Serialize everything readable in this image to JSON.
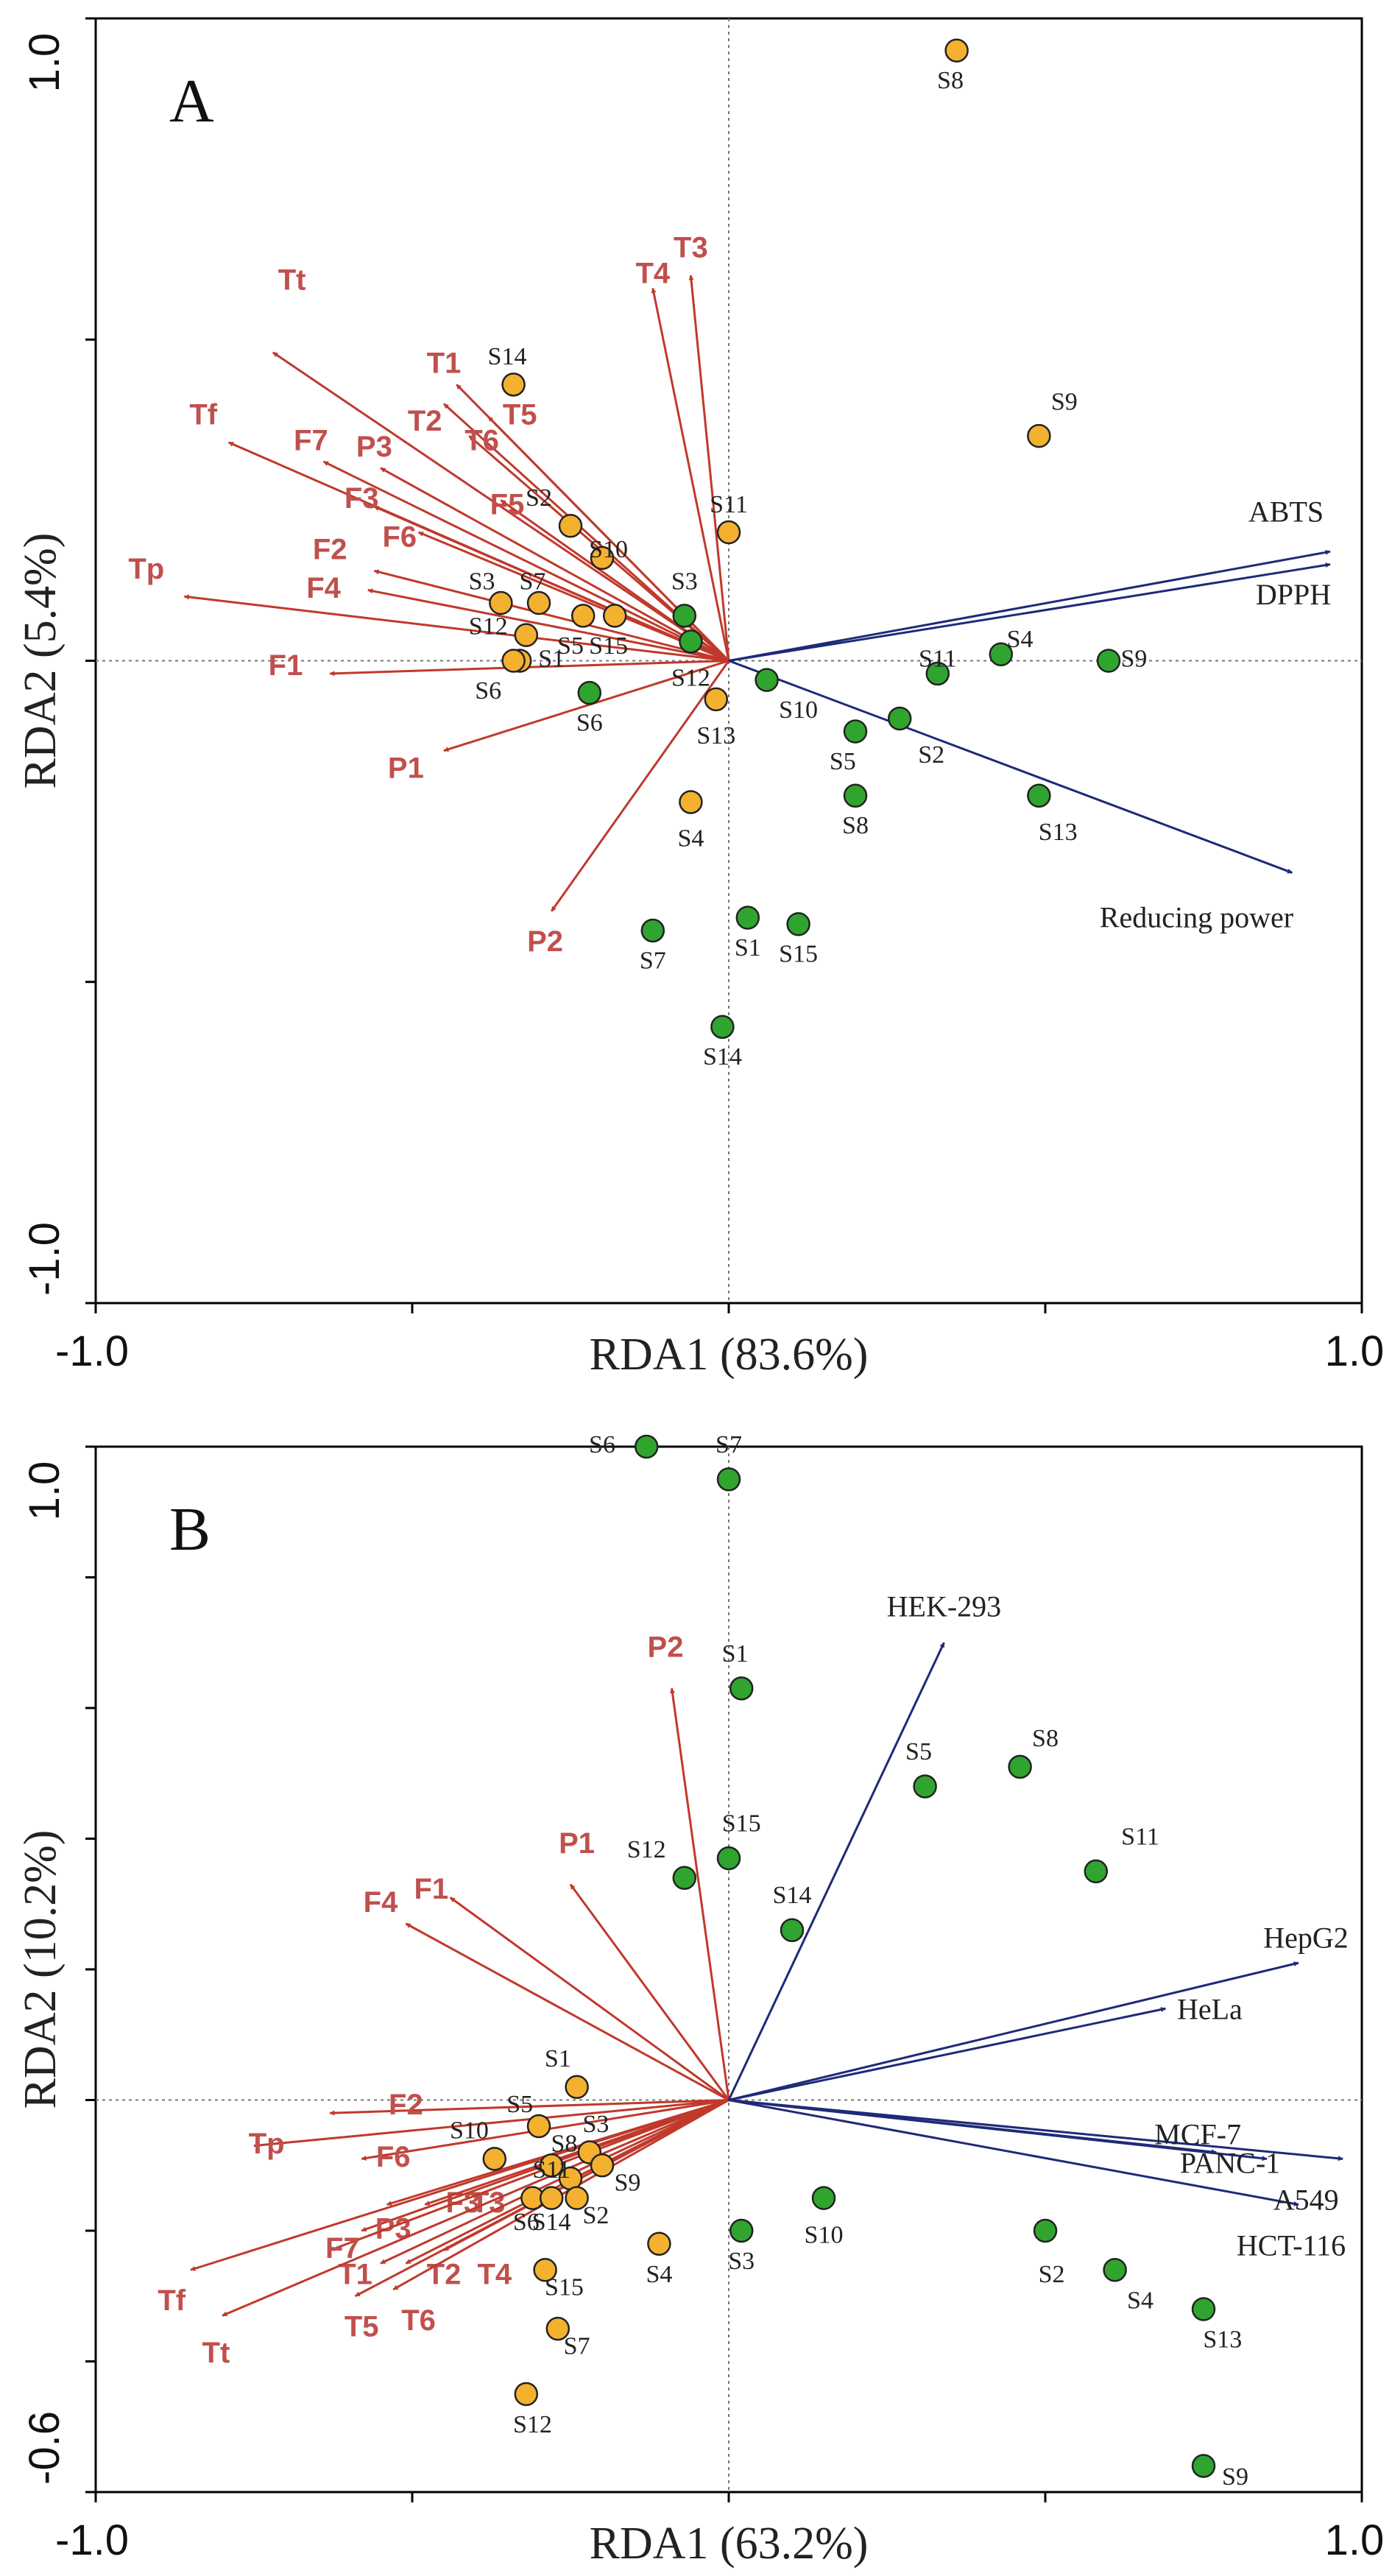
{
  "colors": {
    "explanatory": "#c0392b",
    "explanatory_label": "#c0504d",
    "response": "#1f2a78",
    "site_orange": "#f4b130",
    "site_green": "#2fa52f"
  },
  "chart_data": [
    {
      "type": "scatter",
      "subtype": "rda-biplot",
      "title": "A",
      "xlabel": "RDA1 (83.6%)",
      "ylabel": "RDA2 (5.4%)",
      "xlim": [
        -1.0,
        1.0
      ],
      "ylim": [
        -1.0,
        1.0
      ],
      "x_ticks": [
        -1.0,
        -0.5,
        0.0,
        0.5,
        1.0
      ],
      "y_ticks": [
        -1.0,
        -0.5,
        0.0,
        0.5,
        1.0
      ],
      "x_tick_labels": [
        "-1.0",
        "1.0"
      ],
      "y_tick_labels": [
        "1.0",
        "-1.0"
      ],
      "response_arrows": [
        {
          "name": "ABTS",
          "x": 0.95,
          "y": 0.17
        },
        {
          "name": "DPPH",
          "x": 0.95,
          "y": 0.15
        },
        {
          "name": "Reducing power",
          "x": 0.89,
          "y": -0.33
        }
      ],
      "explanatory_arrows": [
        {
          "name": "T3",
          "x": -0.06,
          "y": 0.6,
          "lx": -0.06,
          "ly": 0.64
        },
        {
          "name": "T4",
          "x": -0.12,
          "y": 0.58,
          "lx": -0.12,
          "ly": 0.6
        },
        {
          "name": "Tt",
          "x": -0.72,
          "y": 0.48,
          "lx": -0.69,
          "ly": 0.59
        },
        {
          "name": "T1",
          "x": -0.43,
          "y": 0.43,
          "lx": -0.45,
          "ly": 0.46
        },
        {
          "name": "T2",
          "x": -0.45,
          "y": 0.4,
          "lx": -0.48,
          "ly": 0.37
        },
        {
          "name": "T5",
          "x": -0.38,
          "y": 0.38,
          "lx": -0.33,
          "ly": 0.38
        },
        {
          "name": "T6",
          "x": -0.41,
          "y": 0.35,
          "lx": -0.39,
          "ly": 0.34
        },
        {
          "name": "Tf",
          "x": -0.79,
          "y": 0.34,
          "lx": -0.83,
          "ly": 0.38
        },
        {
          "name": "F7",
          "x": -0.64,
          "y": 0.31,
          "lx": -0.66,
          "ly": 0.34
        },
        {
          "name": "P3",
          "x": -0.55,
          "y": 0.3,
          "lx": -0.56,
          "ly": 0.33
        },
        {
          "name": "F3",
          "x": -0.56,
          "y": 0.24,
          "lx": -0.58,
          "ly": 0.25
        },
        {
          "name": "F5",
          "x": -0.36,
          "y": 0.25,
          "lx": -0.35,
          "ly": 0.24
        },
        {
          "name": "F6",
          "x": -0.49,
          "y": 0.2,
          "lx": -0.52,
          "ly": 0.19
        },
        {
          "name": "F2",
          "x": -0.56,
          "y": 0.14,
          "lx": -0.63,
          "ly": 0.17
        },
        {
          "name": "F4",
          "x": -0.57,
          "y": 0.11,
          "lx": -0.64,
          "ly": 0.11
        },
        {
          "name": "Tp",
          "x": -0.86,
          "y": 0.1,
          "lx": -0.92,
          "ly": 0.14
        },
        {
          "name": "F1",
          "x": -0.63,
          "y": -0.02,
          "lx": -0.7,
          "ly": -0.01
        },
        {
          "name": "P1",
          "x": -0.45,
          "y": -0.14,
          "lx": -0.51,
          "ly": -0.17
        },
        {
          "name": "P2",
          "x": -0.28,
          "y": -0.39,
          "lx": -0.29,
          "ly": -0.44
        }
      ],
      "sites_orange": [
        {
          "name": "S8",
          "x": 0.36,
          "y": 0.95,
          "lx": 0.35,
          "ly": 0.9
        },
        {
          "name": "S9",
          "x": 0.49,
          "y": 0.35,
          "lx": 0.53,
          "ly": 0.4
        },
        {
          "name": "S14",
          "x": -0.34,
          "y": 0.43,
          "lx": -0.35,
          "ly": 0.47
        },
        {
          "name": "S11",
          "x": 0.0,
          "y": 0.2,
          "lx": 0.0,
          "ly": 0.24
        },
        {
          "name": "S2",
          "x": -0.25,
          "y": 0.21,
          "lx": -0.3,
          "ly": 0.25
        },
        {
          "name": "S10",
          "x": -0.2,
          "y": 0.16,
          "lx": -0.19,
          "ly": 0.17
        },
        {
          "name": "S3",
          "x": -0.36,
          "y": 0.09,
          "lx": -0.39,
          "ly": 0.12
        },
        {
          "name": "S7",
          "x": -0.3,
          "y": 0.09,
          "lx": -0.31,
          "ly": 0.12
        },
        {
          "name": "S12",
          "x": -0.32,
          "y": 0.04,
          "lx": -0.38,
          "ly": 0.05
        },
        {
          "name": "S5",
          "x": -0.23,
          "y": 0.07,
          "lx": -0.25,
          "ly": 0.02
        },
        {
          "name": "S15",
          "x": -0.18,
          "y": 0.07,
          "lx": -0.19,
          "ly": 0.02
        },
        {
          "name": "S1",
          "x": -0.33,
          "y": 0.0,
          "lx": -0.28,
          "ly": 0.0
        },
        {
          "name": "S6",
          "x": -0.34,
          "y": 0.0,
          "lx": -0.38,
          "ly": -0.05
        },
        {
          "name": "S13",
          "x": -0.02,
          "y": -0.06,
          "lx": -0.02,
          "ly": -0.12
        },
        {
          "name": "S4",
          "x": -0.06,
          "y": -0.22,
          "lx": -0.06,
          "ly": -0.28
        }
      ],
      "sites_green": [
        {
          "name": "S3",
          "x": -0.07,
          "y": 0.07,
          "lx": -0.07,
          "ly": 0.12
        },
        {
          "name": "S12",
          "x": -0.06,
          "y": 0.03,
          "lx": -0.06,
          "ly": -0.03
        },
        {
          "name": "S6",
          "x": -0.22,
          "y": -0.05,
          "lx": -0.22,
          "ly": -0.1
        },
        {
          "name": "S10",
          "x": 0.06,
          "y": -0.03,
          "lx": 0.11,
          "ly": -0.08
        },
        {
          "name": "S11",
          "x": 0.33,
          "y": -0.02,
          "lx": 0.33,
          "ly": 0.0
        },
        {
          "name": "S4",
          "x": 0.43,
          "y": 0.01,
          "lx": 0.46,
          "ly": 0.03
        },
        {
          "name": "S9",
          "x": 0.6,
          "y": 0.0,
          "lx": 0.64,
          "ly": 0.0
        },
        {
          "name": "S2",
          "x": 0.27,
          "y": -0.09,
          "lx": 0.32,
          "ly": -0.15
        },
        {
          "name": "S5",
          "x": 0.2,
          "y": -0.11,
          "lx": 0.18,
          "ly": -0.16
        },
        {
          "name": "S8",
          "x": 0.2,
          "y": -0.21,
          "lx": 0.2,
          "ly": -0.26
        },
        {
          "name": "S13",
          "x": 0.49,
          "y": -0.21,
          "lx": 0.52,
          "ly": -0.27
        },
        {
          "name": "S7",
          "x": -0.12,
          "y": -0.42,
          "lx": -0.12,
          "ly": -0.47
        },
        {
          "name": "S1",
          "x": 0.03,
          "y": -0.4,
          "lx": 0.03,
          "ly": -0.45
        },
        {
          "name": "S15",
          "x": 0.11,
          "y": -0.41,
          "lx": 0.11,
          "ly": -0.46
        },
        {
          "name": "S14",
          "x": -0.01,
          "y": -0.57,
          "lx": -0.01,
          "ly": -0.62
        }
      ]
    },
    {
      "type": "scatter",
      "subtype": "rda-biplot",
      "title": "B",
      "xlabel": "RDA1 (63.2%)",
      "ylabel": "RDA2 (10.2%)",
      "xlim": [
        -1.0,
        1.0
      ],
      "ylim": [
        -0.6,
        1.0
      ],
      "x_ticks": [
        -1.0,
        -0.5,
        0.0,
        0.5,
        1.0
      ],
      "y_ticks": [
        -0.6,
        -0.4,
        -0.2,
        0.0,
        0.2,
        0.4,
        0.6,
        0.8,
        1.0
      ],
      "x_tick_labels": [
        "-1.0",
        "1.0"
      ],
      "y_tick_labels": [
        "1.0",
        "-0.6"
      ],
      "response_arrows": [
        {
          "name": "HEK-293",
          "x": 0.34,
          "y": 0.7
        },
        {
          "name": "HepG2",
          "x": 0.9,
          "y": 0.21
        },
        {
          "name": "HeLa",
          "x": 0.69,
          "y": 0.14
        },
        {
          "name": "MCF-7",
          "x": 0.77,
          "y": -0.08
        },
        {
          "name": "PANC-1",
          "x": 0.85,
          "y": -0.09
        },
        {
          "name": "A549",
          "x": 0.97,
          "y": -0.09
        },
        {
          "name": "HCT-116",
          "x": 0.9,
          "y": -0.16
        }
      ],
      "explanatory_arrows": [
        {
          "name": "P2",
          "x": -0.09,
          "y": 0.63,
          "lx": -0.1,
          "ly": 0.69
        },
        {
          "name": "P1",
          "x": -0.25,
          "y": 0.33,
          "lx": -0.24,
          "ly": 0.39
        },
        {
          "name": "F1",
          "x": -0.44,
          "y": 0.31,
          "lx": -0.47,
          "ly": 0.32
        },
        {
          "name": "F4",
          "x": -0.51,
          "y": 0.27,
          "lx": -0.55,
          "ly": 0.3
        },
        {
          "name": "F2",
          "x": -0.63,
          "y": -0.02,
          "lx": -0.51,
          "ly": -0.01
        },
        {
          "name": "Tp",
          "x": -0.75,
          "y": -0.07,
          "lx": -0.73,
          "ly": -0.07
        },
        {
          "name": "F6",
          "x": -0.58,
          "y": -0.09,
          "lx": -0.53,
          "ly": -0.09
        },
        {
          "name": "F3",
          "x": -0.54,
          "y": -0.16,
          "lx": -0.42,
          "ly": -0.16
        },
        {
          "name": "T3",
          "x": -0.48,
          "y": -0.16,
          "lx": -0.38,
          "ly": -0.16
        },
        {
          "name": "P3",
          "x": -0.58,
          "y": -0.2,
          "lx": -0.53,
          "ly": -0.2
        },
        {
          "name": "F7",
          "x": -0.63,
          "y": -0.23,
          "lx": -0.61,
          "ly": -0.23
        },
        {
          "name": "T1",
          "x": -0.55,
          "y": -0.25,
          "lx": -0.59,
          "ly": -0.27
        },
        {
          "name": "T2",
          "x": -0.51,
          "y": -0.25,
          "lx": -0.45,
          "ly": -0.27
        },
        {
          "name": "T4",
          "x": -0.45,
          "y": -0.23,
          "lx": -0.37,
          "ly": -0.27
        },
        {
          "name": "T5",
          "x": -0.59,
          "y": -0.3,
          "lx": -0.58,
          "ly": -0.35
        },
        {
          "name": "T6",
          "x": -0.53,
          "y": -0.29,
          "lx": -0.49,
          "ly": -0.34
        },
        {
          "name": "Tf",
          "x": -0.85,
          "y": -0.26,
          "lx": -0.88,
          "ly": -0.31
        },
        {
          "name": "Tt",
          "x": -0.8,
          "y": -0.33,
          "lx": -0.81,
          "ly": -0.39
        }
      ],
      "sites_orange": [
        {
          "name": "S1",
          "x": -0.24,
          "y": 0.02,
          "lx": -0.27,
          "ly": 0.06
        },
        {
          "name": "S5",
          "x": -0.3,
          "y": -0.04,
          "lx": -0.33,
          "ly": -0.01
        },
        {
          "name": "S10",
          "x": -0.37,
          "y": -0.09,
          "lx": -0.41,
          "ly": -0.05
        },
        {
          "name": "S3",
          "x": -0.22,
          "y": -0.08,
          "lx": -0.21,
          "ly": -0.04
        },
        {
          "name": "S8",
          "x": -0.28,
          "y": -0.1,
          "lx": -0.26,
          "ly": -0.07
        },
        {
          "name": "S9",
          "x": -0.2,
          "y": -0.1,
          "lx": -0.16,
          "ly": -0.13
        },
        {
          "name": "S11",
          "x": -0.25,
          "y": -0.12,
          "lx": -0.28,
          "ly": -0.11
        },
        {
          "name": "S6",
          "x": -0.31,
          "y": -0.15,
          "lx": -0.32,
          "ly": -0.19
        },
        {
          "name": "S14",
          "x": -0.28,
          "y": -0.15,
          "lx": -0.28,
          "ly": -0.19
        },
        {
          "name": "S2",
          "x": -0.24,
          "y": -0.15,
          "lx": -0.21,
          "ly": -0.18
        },
        {
          "name": "S4",
          "x": -0.11,
          "y": -0.22,
          "lx": -0.11,
          "ly": -0.27
        },
        {
          "name": "S15",
          "x": -0.29,
          "y": -0.26,
          "lx": -0.26,
          "ly": -0.29
        },
        {
          "name": "S7",
          "x": -0.27,
          "y": -0.35,
          "lx": -0.24,
          "ly": -0.38
        },
        {
          "name": "S12",
          "x": -0.32,
          "y": -0.45,
          "lx": -0.31,
          "ly": -0.5
        }
      ],
      "sites_green": [
        {
          "name": "S6",
          "x": -0.13,
          "y": 1.0,
          "lx": -0.2,
          "ly": 1.0
        },
        {
          "name": "S7",
          "x": 0.0,
          "y": 0.95,
          "lx": 0.0,
          "ly": 1.0
        },
        {
          "name": "S1",
          "x": 0.02,
          "y": 0.63,
          "lx": 0.01,
          "ly": 0.68
        },
        {
          "name": "S5",
          "x": 0.31,
          "y": 0.48,
          "lx": 0.3,
          "ly": 0.53
        },
        {
          "name": "S8",
          "x": 0.46,
          "y": 0.51,
          "lx": 0.5,
          "ly": 0.55
        },
        {
          "name": "S11",
          "x": 0.58,
          "y": 0.35,
          "lx": 0.65,
          "ly": 0.4
        },
        {
          "name": "S12",
          "x": -0.07,
          "y": 0.34,
          "lx": -0.13,
          "ly": 0.38
        },
        {
          "name": "S15",
          "x": 0.0,
          "y": 0.37,
          "lx": 0.02,
          "ly": 0.42
        },
        {
          "name": "S14",
          "x": 0.1,
          "y": 0.26,
          "lx": 0.1,
          "ly": 0.31
        },
        {
          "name": "S3",
          "x": 0.02,
          "y": -0.2,
          "lx": 0.02,
          "ly": -0.25
        },
        {
          "name": "S10",
          "x": 0.15,
          "y": -0.15,
          "lx": 0.15,
          "ly": -0.21
        },
        {
          "name": "S2",
          "x": 0.5,
          "y": -0.2,
          "lx": 0.51,
          "ly": -0.27
        },
        {
          "name": "S4",
          "x": 0.61,
          "y": -0.26,
          "lx": 0.65,
          "ly": -0.31
        },
        {
          "name": "S13",
          "x": 0.75,
          "y": -0.32,
          "lx": 0.78,
          "ly": -0.37
        },
        {
          "name": "S9",
          "x": 0.75,
          "y": -0.56,
          "lx": 0.8,
          "ly": -0.58
        }
      ]
    }
  ]
}
